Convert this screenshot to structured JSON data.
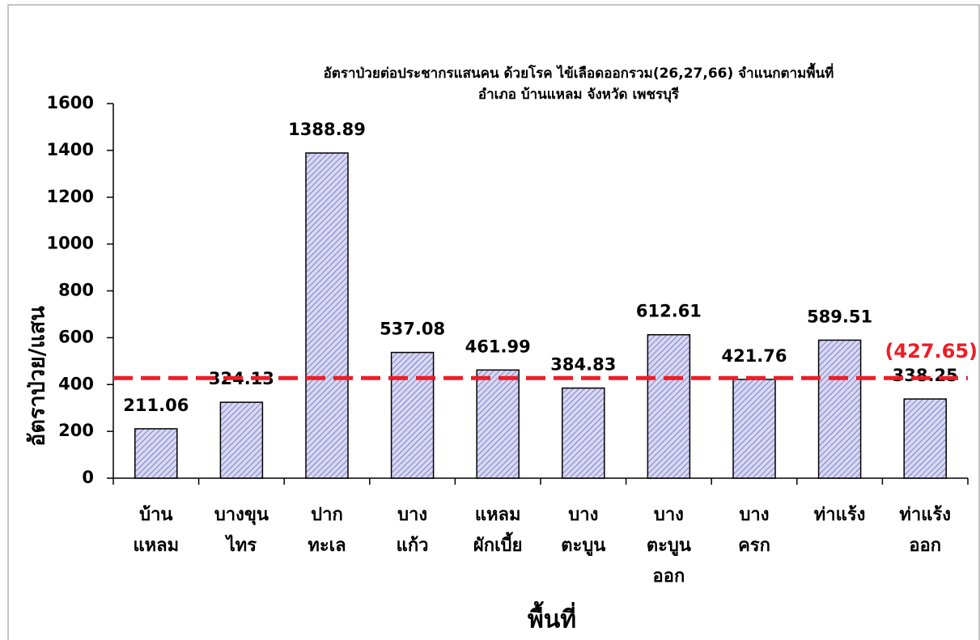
{
  "chart_data": {
    "type": "bar",
    "title": "อัตราป่วยต่อประชากรแสนคน ด้วยโรค ไข้เลือดออกรวม(26,27,66)  จำแนกตามพื้นที่\nอำเภอ  บ้านแหลม จังหวัด เพชรบุรี",
    "x_label": "พื้นที่",
    "y_label": "อัตราป่วย/แสน",
    "categories": [
      "บ้าน\nแหลม",
      "บางขุน\nไทร",
      "ปาก\nทะเล",
      "บาง\nแก้ว",
      "แหลม\nผักเบี้ย",
      "บาง\nตะบูน",
      "บาง\nตะบูน\nออก",
      "บาง\nครก",
      "ท่าแร้ง",
      "ท่าแร้ง\nออก"
    ],
    "values": [
      211.06,
      324.13,
      1388.89,
      537.08,
      461.99,
      384.83,
      612.61,
      421.76,
      589.51,
      338.25
    ],
    "color": "#c8c8f0",
    "ylim": [
      0,
      1600
    ],
    "yticks": [
      0,
      200,
      400,
      600,
      800,
      1000,
      1200,
      1400,
      1600
    ],
    "reference_line": {
      "value": 427.65,
      "label": "(427.65)",
      "color": "#ee1c25"
    }
  }
}
